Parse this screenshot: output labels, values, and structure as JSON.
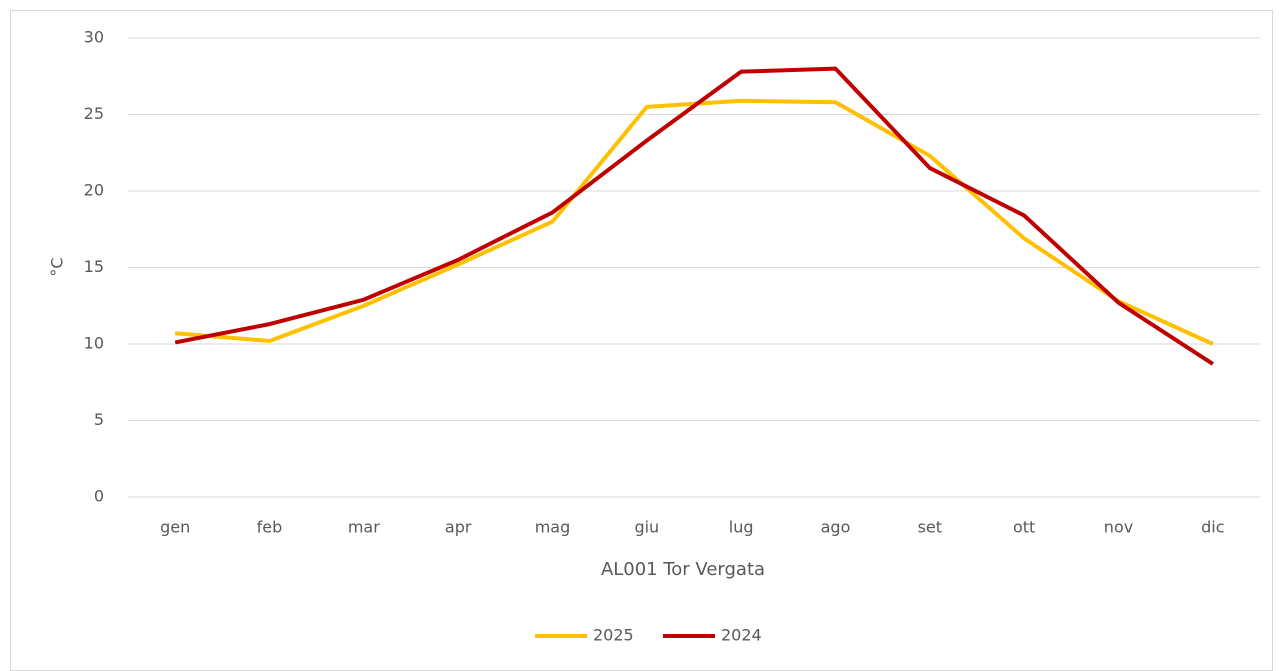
{
  "chart_data": {
    "type": "line",
    "x_label": "AL001 Tor Vergata",
    "y_label": "°C",
    "categories": [
      "gen",
      "feb",
      "mar",
      "apr",
      "mag",
      "giu",
      "lug",
      "ago",
      "set",
      "ott",
      "nov",
      "dic"
    ],
    "series": [
      {
        "name": "2025",
        "color": "#ffc000",
        "values": [
          10.7,
          10.2,
          12.5,
          15.2,
          18.0,
          25.5,
          25.9,
          25.8,
          22.3,
          16.9,
          12.8,
          10.0
        ]
      },
      {
        "name": "2024",
        "color": "#c00000",
        "values": [
          10.1,
          11.3,
          12.9,
          15.5,
          18.6,
          23.3,
          27.8,
          28.0,
          21.5,
          18.4,
          12.7,
          8.7
        ]
      }
    ],
    "ylim": [
      0,
      30
    ],
    "yticks": [
      0,
      5,
      10,
      15,
      20,
      25,
      30
    ],
    "grid": true,
    "legend": "bottom"
  }
}
